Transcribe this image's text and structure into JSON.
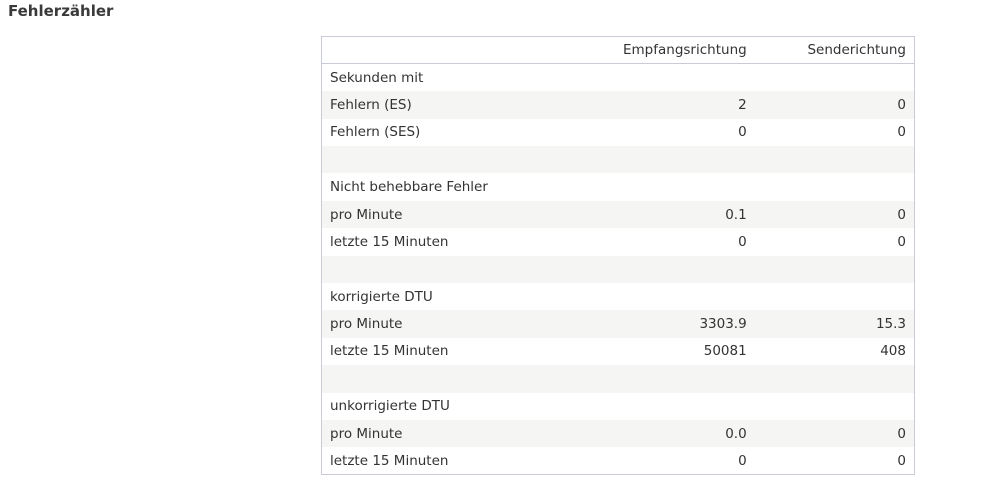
{
  "header": {
    "title": "Fehlerzähler"
  },
  "table": {
    "columns": [
      "Empfangsrichtung",
      "Senderichtung"
    ],
    "sections": [
      {
        "title": "Sekunden mit",
        "rows": [
          {
            "label": "Fehlern (ES)",
            "values": [
              "2",
              "0"
            ]
          },
          {
            "label": "Fehlern (SES)",
            "values": [
              "0",
              "0"
            ]
          }
        ]
      },
      {
        "title": "Nicht behebbare Fehler",
        "rows": [
          {
            "label": "pro Minute",
            "values": [
              "0.1",
              "0"
            ]
          },
          {
            "label": "letzte 15 Minuten",
            "values": [
              "0",
              "0"
            ]
          }
        ]
      },
      {
        "title": "korrigierte DTU",
        "rows": [
          {
            "label": "pro Minute",
            "values": [
              "3303.9",
              "15.3"
            ]
          },
          {
            "label": "letzte 15 Minuten",
            "values": [
              "50081",
              "408"
            ]
          }
        ]
      },
      {
        "title": "unkorrigierte DTU",
        "rows": [
          {
            "label": "pro Minute",
            "values": [
              "0.0",
              "0"
            ]
          },
          {
            "label": "letzte 15 Minuten",
            "values": [
              "0",
              "0"
            ]
          }
        ]
      }
    ]
  }
}
